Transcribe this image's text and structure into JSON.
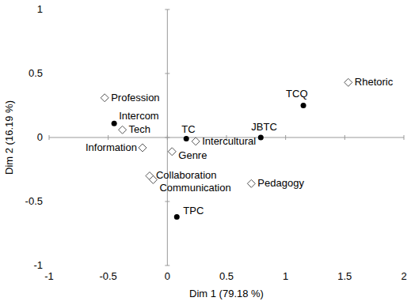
{
  "chart_data": {
    "type": "scatter",
    "x_label": "Dim 1 (79.18 %)",
    "y_label": "Dim 2 (16.19 %)",
    "xlim": [
      -1,
      2
    ],
    "ylim": [
      -1,
      1
    ],
    "xticks": [
      -1,
      -0.5,
      0,
      0.5,
      1,
      1.5,
      2
    ],
    "yticks": [
      -1,
      -0.5,
      0,
      0.5,
      1
    ],
    "grid": false,
    "series": [
      {
        "marker": "circle",
        "color": "#000000",
        "labels": [
          "Intercom",
          "TC",
          "JBTC",
          "TCQ",
          "TPC"
        ],
        "x": [
          -0.45,
          0.16,
          0.79,
          1.15,
          0.08
        ],
        "values": [
          0.11,
          -0.01,
          0.0,
          0.25,
          -0.62
        ]
      },
      {
        "marker": "diamond",
        "color": "#555555",
        "labels": [
          "Rhetoric",
          "Profession",
          "Tech",
          "Information",
          "Genre",
          "Intercultural",
          "Collaboration",
          "Communication",
          "Pedagogy"
        ],
        "x": [
          1.53,
          -0.53,
          -0.38,
          -0.21,
          0.04,
          0.24,
          -0.15,
          -0.12,
          0.71
        ],
        "values": [
          0.43,
          0.31,
          0.06,
          -0.08,
          -0.11,
          -0.03,
          -0.3,
          -0.33,
          -0.36
        ]
      }
    ]
  }
}
